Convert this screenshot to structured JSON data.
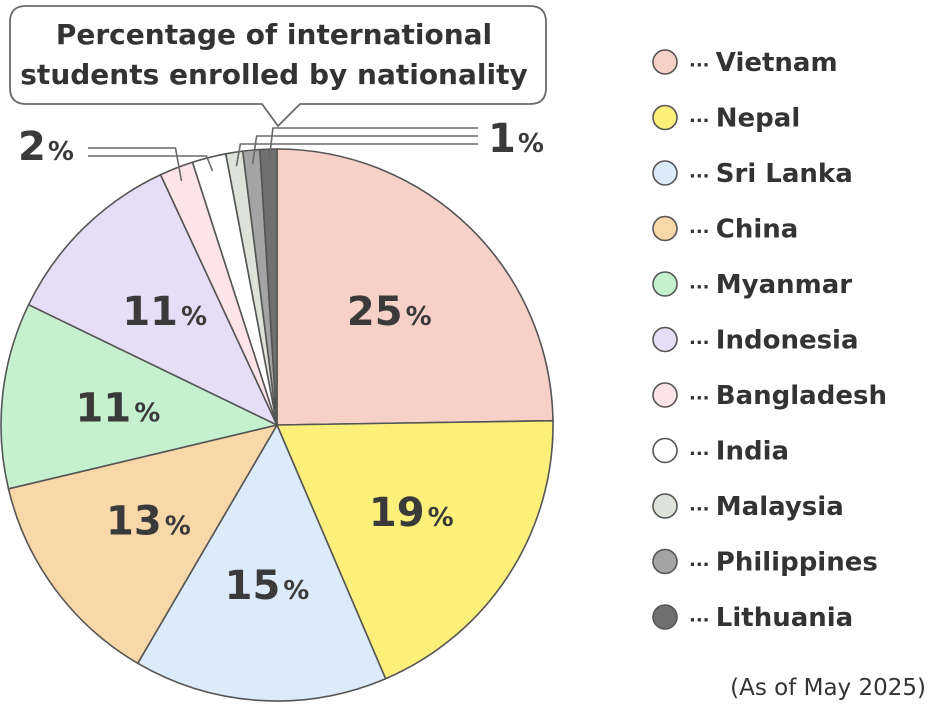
{
  "chart_data": {
    "type": "pie",
    "title": [
      "Percentage of international",
      "students enrolled by nationality"
    ],
    "note": "(As of May 2025)",
    "slices": [
      {
        "name": "Vietnam",
        "value": 25,
        "label": "25",
        "color": "#f7d1c7"
      },
      {
        "name": "Nepal",
        "value": 19,
        "label": "19",
        "color": "#fdf07a"
      },
      {
        "name": "Sri Lanka",
        "value": 15,
        "label": "15",
        "color": "#dcebfa"
      },
      {
        "name": "China",
        "value": 13,
        "label": "13",
        "color": "#f8d7a8"
      },
      {
        "name": "Myanmar",
        "value": 11,
        "label": "11",
        "color": "#c6f1cf"
      },
      {
        "name": "Indonesia",
        "value": 11,
        "label": "11",
        "color": "#e6ddf6"
      },
      {
        "name": "Bangladesh",
        "value": 2,
        "label": "",
        "color": "#fde4e8"
      },
      {
        "name": "India",
        "value": 2,
        "label": "",
        "color": "#ffffff"
      },
      {
        "name": "Malaysia",
        "value": 1,
        "label": "",
        "color": "#dde3d8"
      },
      {
        "name": "Philippines",
        "value": 1,
        "label": "",
        "color": "#a4a4a4"
      },
      {
        "name": "Lithuania",
        "value": 1,
        "label": "",
        "color": "#707070"
      }
    ],
    "callouts": [
      {
        "text": "2",
        "unit": "%",
        "slices": [
          "Bangladesh",
          "India"
        ]
      },
      {
        "text": "1",
        "unit": "%",
        "slices": [
          "Malaysia",
          "Philippines",
          "Lithuania"
        ]
      }
    ],
    "percent_symbol": "%",
    "legend_separator": "···",
    "legend_position": "right"
  }
}
